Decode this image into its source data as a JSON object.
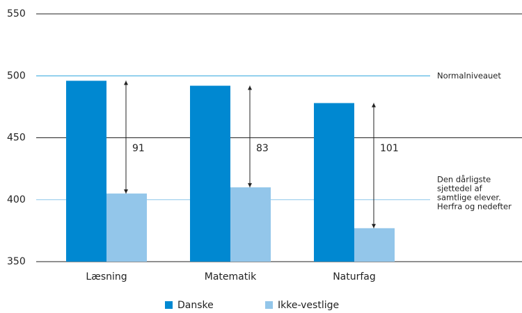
{
  "chart_data": {
    "type": "bar",
    "categories": [
      "Læsning",
      "Matematik",
      "Naturfag"
    ],
    "series": [
      {
        "name": "Danske",
        "color": "#0088d1",
        "values": [
          496,
          492,
          478
        ]
      },
      {
        "name": "Ikke-vestlige",
        "color": "#93c6ea",
        "values": [
          405,
          410,
          377
        ]
      }
    ],
    "differences": [
      91,
      83,
      101
    ],
    "ylim": [
      350,
      550
    ],
    "yticks": [
      350,
      400,
      450,
      500,
      550
    ],
    "reference_lines": [
      {
        "value": 500,
        "color": "#29a3dc",
        "label": [
          "Normalniveauet"
        ]
      },
      {
        "value": 400,
        "color": "#8cc6ea",
        "label": [
          "Den dårligste",
          "sjettedel af",
          "samtlige elever.",
          "Herfra og nedefter"
        ]
      }
    ]
  }
}
